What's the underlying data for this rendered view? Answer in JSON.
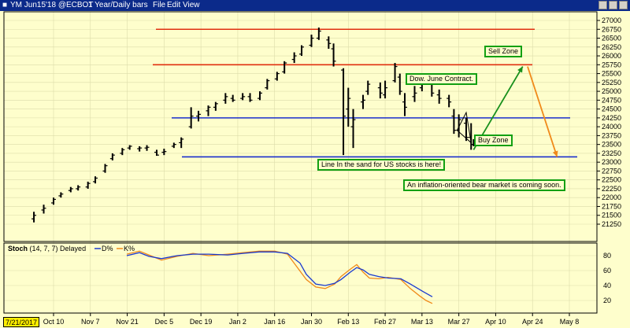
{
  "window": {
    "symbol": "YM Jun15'18 @ECBOT",
    "period": "1 Year/Daily bars",
    "menu": [
      "File",
      "Edit",
      "View"
    ]
  },
  "annotations": {
    "sell_zone": "Sell Zone",
    "dow_contract": "Dow. June Contract.",
    "buy_zone": "Buy Zone",
    "line_in_sand": "Line In the sand for US stocks is here!",
    "bear_market": "An inflation-oriented bear market is coming soon."
  },
  "colors": {
    "background": "#fefecc",
    "resistance": "#e03010",
    "support": "#1a2ecc",
    "up_arrow": "#18901c",
    "down_arrow": "#f08a1a",
    "stoch_d": "#1a3ad0",
    "stoch_k": "#f08a1a",
    "label_border": "#12a012"
  },
  "chart_data": {
    "type": "ohlc",
    "price_axis": {
      "min": 21000,
      "max": 27000,
      "ticks": [
        27000,
        26750,
        26500,
        26250,
        26000,
        25750,
        25500,
        25250,
        25000,
        24750,
        24500,
        24250,
        24000,
        23750,
        23500,
        23250,
        23000,
        22750,
        22500,
        22250,
        22000,
        21750,
        21500,
        21250
      ]
    },
    "date_axis": {
      "start": "2017-07-21",
      "first_label": "7/21/2017",
      "labels": [
        "Oct 10",
        "Nov 7",
        "Nov 21",
        "Dec 5",
        "Dec 19",
        "Jan 2",
        "Jan 16",
        "Jan 30",
        "Feb 13",
        "Feb 27",
        "Mar 13",
        "Mar 27",
        "Apr 10",
        "Apr 24",
        "May 8"
      ]
    },
    "levels": [
      {
        "kind": "resistance",
        "value": 26750
      },
      {
        "kind": "resistance",
        "value": 25750
      },
      {
        "kind": "support",
        "value": 24250
      },
      {
        "kind": "support",
        "value": 23150
      }
    ],
    "projection_arrows": [
      {
        "kind": "up",
        "from": {
          "date": "2018-03-30",
          "price": 23350
        },
        "to": {
          "date": "2018-04-19",
          "price": 25700
        }
      },
      {
        "kind": "down",
        "from": {
          "date": "2018-04-21",
          "price": 25700
        },
        "to": {
          "date": "2018-05-03",
          "price": 23150
        }
      }
    ],
    "bars": [
      {
        "date": "2017-10-02",
        "o": 21400,
        "h": 21600,
        "l": 21300,
        "c": 21500
      },
      {
        "date": "2017-10-06",
        "o": 21650,
        "h": 21800,
        "l": 21550,
        "c": 21700
      },
      {
        "date": "2017-10-10",
        "o": 21850,
        "h": 22000,
        "l": 21800,
        "c": 21950
      },
      {
        "date": "2017-10-13",
        "o": 22050,
        "h": 22150,
        "l": 22000,
        "c": 22100
      },
      {
        "date": "2017-10-17",
        "o": 22200,
        "h": 22300,
        "l": 22150,
        "c": 22250
      },
      {
        "date": "2017-10-20",
        "o": 22250,
        "h": 22350,
        "l": 22200,
        "c": 22300
      },
      {
        "date": "2017-10-24",
        "o": 22300,
        "h": 22450,
        "l": 22250,
        "c": 22400
      },
      {
        "date": "2017-10-27",
        "o": 22450,
        "h": 22600,
        "l": 22400,
        "c": 22550
      },
      {
        "date": "2017-10-31",
        "o": 22750,
        "h": 22950,
        "l": 22700,
        "c": 22900
      },
      {
        "date": "2017-11-03",
        "o": 23100,
        "h": 23250,
        "l": 23050,
        "c": 23200
      },
      {
        "date": "2017-11-07",
        "o": 23250,
        "h": 23400,
        "l": 23200,
        "c": 23350
      },
      {
        "date": "2017-11-10",
        "o": 23400,
        "h": 23480,
        "l": 23350,
        "c": 23450
      },
      {
        "date": "2017-11-14",
        "o": 23380,
        "h": 23450,
        "l": 23300,
        "c": 23400
      },
      {
        "date": "2017-11-17",
        "o": 23400,
        "h": 23480,
        "l": 23320,
        "c": 23420
      },
      {
        "date": "2017-11-21",
        "o": 23280,
        "h": 23350,
        "l": 23180,
        "c": 23200
      },
      {
        "date": "2017-11-24",
        "o": 23280,
        "h": 23380,
        "l": 23200,
        "c": 23300
      },
      {
        "date": "2017-11-28",
        "o": 23450,
        "h": 23550,
        "l": 23400,
        "c": 23500
      },
      {
        "date": "2017-12-01",
        "o": 23550,
        "h": 23700,
        "l": 23400,
        "c": 23650
      },
      {
        "date": "2017-12-05",
        "o": 24000,
        "h": 24550,
        "l": 23950,
        "c": 24300
      },
      {
        "date": "2017-12-08",
        "o": 24300,
        "h": 24450,
        "l": 24150,
        "c": 24350
      },
      {
        "date": "2017-12-12",
        "o": 24450,
        "h": 24600,
        "l": 24300,
        "c": 24550
      },
      {
        "date": "2017-12-15",
        "o": 24550,
        "h": 24700,
        "l": 24450,
        "c": 24650
      },
      {
        "date": "2017-12-19",
        "o": 24750,
        "h": 24950,
        "l": 24650,
        "c": 24850
      },
      {
        "date": "2017-12-22",
        "o": 24800,
        "h": 24900,
        "l": 24700,
        "c": 24750
      },
      {
        "date": "2017-12-26",
        "o": 24800,
        "h": 24950,
        "l": 24750,
        "c": 24850
      },
      {
        "date": "2017-12-29",
        "o": 24850,
        "h": 24950,
        "l": 24700,
        "c": 24750
      },
      {
        "date": "2018-01-02",
        "o": 24800,
        "h": 25000,
        "l": 24750,
        "c": 24950
      },
      {
        "date": "2018-01-05",
        "o": 25100,
        "h": 25350,
        "l": 25050,
        "c": 25300
      },
      {
        "date": "2018-01-09",
        "o": 25350,
        "h": 25550,
        "l": 25300,
        "c": 25500
      },
      {
        "date": "2018-01-12",
        "o": 25550,
        "h": 25850,
        "l": 25500,
        "c": 25800
      },
      {
        "date": "2018-01-16",
        "o": 25900,
        "h": 26100,
        "l": 25800,
        "c": 26000
      },
      {
        "date": "2018-01-19",
        "o": 26050,
        "h": 26300,
        "l": 26000,
        "c": 26250
      },
      {
        "date": "2018-01-23",
        "o": 26300,
        "h": 26600,
        "l": 26250,
        "c": 26500
      },
      {
        "date": "2018-01-26",
        "o": 26500,
        "h": 26800,
        "l": 26450,
        "c": 26700
      },
      {
        "date": "2018-01-30",
        "o": 26450,
        "h": 26550,
        "l": 26200,
        "c": 26350
      },
      {
        "date": "2018-02-01",
        "o": 26200,
        "h": 26350,
        "l": 25700,
        "c": 25850
      },
      {
        "date": "2018-02-05",
        "o": 25600,
        "h": 25650,
        "l": 23200,
        "c": 24300
      },
      {
        "date": "2018-02-07",
        "o": 24500,
        "h": 25100,
        "l": 24000,
        "c": 24800
      },
      {
        "date": "2018-02-09",
        "o": 24000,
        "h": 24500,
        "l": 23400,
        "c": 24200
      },
      {
        "date": "2018-02-13",
        "o": 24700,
        "h": 24900,
        "l": 24500,
        "c": 24750
      },
      {
        "date": "2018-02-15",
        "o": 25000,
        "h": 25300,
        "l": 24900,
        "c": 25200
      },
      {
        "date": "2018-02-20",
        "o": 25100,
        "h": 25250,
        "l": 24800,
        "c": 24950
      },
      {
        "date": "2018-02-22",
        "o": 24900,
        "h": 25300,
        "l": 24800,
        "c": 25100
      },
      {
        "date": "2018-02-26",
        "o": 25300,
        "h": 25800,
        "l": 25250,
        "c": 25700
      },
      {
        "date": "2018-02-28",
        "o": 25400,
        "h": 25500,
        "l": 24900,
        "c": 25000
      },
      {
        "date": "2018-03-02",
        "o": 24700,
        "h": 24950,
        "l": 24300,
        "c": 24550
      },
      {
        "date": "2018-03-06",
        "o": 24850,
        "h": 25150,
        "l": 24700,
        "c": 24950
      },
      {
        "date": "2018-03-09",
        "o": 25100,
        "h": 25400,
        "l": 25000,
        "c": 25300
      },
      {
        "date": "2018-03-13",
        "o": 25200,
        "h": 25350,
        "l": 24850,
        "c": 24950
      },
      {
        "date": "2018-03-16",
        "o": 24900,
        "h": 25050,
        "l": 24650,
        "c": 24800
      },
      {
        "date": "2018-03-20",
        "o": 24800,
        "h": 24900,
        "l": 24550,
        "c": 24700
      },
      {
        "date": "2018-03-22",
        "o": 24300,
        "h": 24500,
        "l": 23800,
        "c": 23900
      },
      {
        "date": "2018-03-24",
        "o": 23900,
        "h": 24350,
        "l": 23700,
        "c": 24200
      },
      {
        "date": "2018-03-27",
        "o": 24100,
        "h": 24250,
        "l": 23600,
        "c": 23700
      },
      {
        "date": "2018-03-29",
        "o": 23700,
        "h": 24100,
        "l": 23350,
        "c": 23500
      },
      {
        "date": "2018-03-30",
        "o": 23500,
        "h": 23650,
        "l": 23450,
        "c": 23550
      }
    ],
    "stochastic": {
      "title": "Stoch",
      "params": "(14, 7, 7) Delayed",
      "series_labels": [
        "D%",
        "K%"
      ],
      "axis_ticks": [
        80,
        60,
        40,
        20
      ],
      "ylim": [
        0,
        100
      ],
      "d": [
        [
          0,
          80
        ],
        [
          4,
          84
        ],
        [
          7,
          79
        ],
        [
          11,
          76
        ],
        [
          16,
          80
        ],
        [
          21,
          82
        ],
        [
          26,
          82
        ],
        [
          32,
          81
        ],
        [
          37,
          83
        ],
        [
          42,
          85
        ],
        [
          47,
          85
        ],
        [
          51,
          83
        ],
        [
          55,
          70
        ],
        [
          57,
          55
        ],
        [
          60,
          42
        ],
        [
          63,
          40
        ],
        [
          66,
          43
        ],
        [
          68,
          48
        ],
        [
          71,
          58
        ],
        [
          73,
          64
        ],
        [
          75,
          61
        ],
        [
          77,
          55
        ],
        [
          80,
          52
        ],
        [
          83,
          50
        ],
        [
          87,
          49
        ],
        [
          90,
          42
        ],
        [
          94,
          32
        ],
        [
          97,
          25
        ]
      ],
      "k": [
        [
          0,
          82
        ],
        [
          4,
          86
        ],
        [
          7,
          81
        ],
        [
          11,
          74
        ],
        [
          16,
          79
        ],
        [
          21,
          83
        ],
        [
          26,
          80
        ],
        [
          32,
          82
        ],
        [
          37,
          84
        ],
        [
          42,
          86
        ],
        [
          47,
          86
        ],
        [
          51,
          82
        ],
        [
          54,
          65
        ],
        [
          57,
          48
        ],
        [
          60,
          38
        ],
        [
          63,
          36
        ],
        [
          66,
          42
        ],
        [
          68,
          52
        ],
        [
          71,
          62
        ],
        [
          73,
          68
        ],
        [
          75,
          58
        ],
        [
          77,
          50
        ],
        [
          80,
          49
        ],
        [
          83,
          51
        ],
        [
          87,
          48
        ],
        [
          90,
          36
        ],
        [
          93,
          26
        ],
        [
          95,
          20
        ],
        [
          97,
          16
        ]
      ]
    }
  }
}
